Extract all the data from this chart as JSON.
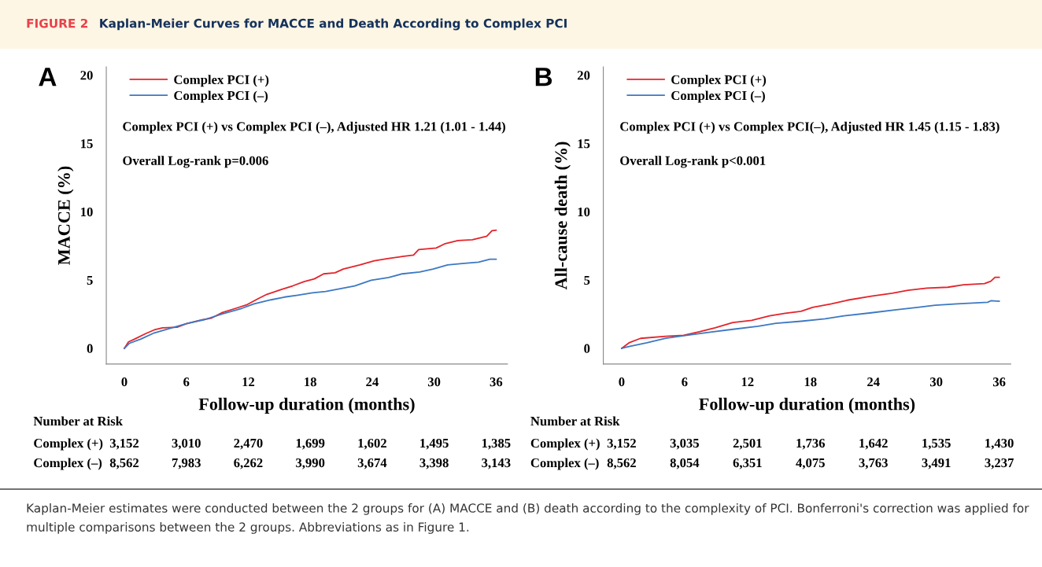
{
  "chart_data": [
    {
      "type": "line",
      "title": "A",
      "xlabel": "Follow-up duration (months)",
      "ylabel": "MACCE (%)",
      "xlim": [
        -1.75,
        37.1
      ],
      "ylim": [
        -1.15,
        20.6
      ],
      "xticks": [
        0,
        6,
        12,
        18,
        24,
        30,
        36
      ],
      "yticks": [
        0,
        5,
        10,
        15,
        20
      ],
      "grid": false,
      "legend": "top left",
      "series": [
        {
          "name": "Complex PCI (+)",
          "color": "#e3242b",
          "x": [
            0,
            0.4,
            1.0,
            2.1,
            2.9,
            3.7,
            5.1,
            6.0,
            7.3,
            8.4,
            9.5,
            10.8,
            11.9,
            13.0,
            13.8,
            15.2,
            16.3,
            17.4,
            18.4,
            19.3,
            20.4,
            21.2,
            22.8,
            24.2,
            25.6,
            26.9,
            28.0,
            28.5,
            30.2,
            31.0,
            32.3,
            33.7,
            35.1,
            35.6,
            36.0
          ],
          "values": [
            0,
            0.47,
            0.68,
            1.09,
            1.35,
            1.5,
            1.54,
            1.8,
            2.05,
            2.2,
            2.62,
            2.93,
            3.2,
            3.65,
            3.95,
            4.3,
            4.57,
            4.88,
            5.08,
            5.45,
            5.53,
            5.8,
            6.1,
            6.41,
            6.58,
            6.72,
            6.82,
            7.23,
            7.34,
            7.64,
            7.89,
            7.95,
            8.2,
            8.61,
            8.65
          ]
        },
        {
          "name": "Complex PCI (–)",
          "color": "#3c78c3",
          "x": [
            0,
            0.5,
            1.6,
            2.9,
            4.6,
            6.0,
            7.8,
            9.5,
            11.4,
            12.5,
            14.2,
            15.5,
            16.8,
            18.2,
            19.5,
            20.9,
            22.3,
            23.9,
            25.6,
            26.9,
            28.6,
            29.9,
            31.3,
            32.7,
            34.3,
            35.4,
            36.0
          ],
          "values": [
            0,
            0.37,
            0.68,
            1.13,
            1.5,
            1.8,
            2.11,
            2.52,
            2.93,
            3.24,
            3.55,
            3.75,
            3.89,
            4.06,
            4.16,
            4.36,
            4.57,
            4.98,
            5.18,
            5.45,
            5.59,
            5.8,
            6.1,
            6.21,
            6.31,
            6.52,
            6.52
          ]
        }
      ],
      "annotations": [
        "Complex PCI (+) vs Complex PCI (–), Adjusted HR 1.21 (1.01 - 1.44)",
        "Overall Log-rank p=0.006",
        "Number at Risk",
        "Complex (+)",
        "3,152",
        "3,010",
        "2,470",
        "1,699",
        "1,602",
        "1,495",
        "1,385",
        "Complex (–)",
        "8,562",
        "7,983",
        "6,262",
        "3,990",
        "3,674",
        "3,398",
        "3,143",
        "FIGURE 2",
        "Kaplan-Meier Curves for MACCE and Death According to Complex PCI",
        "Kaplan-Meier estimates were conducted between the 2 groups for (A) MACCE and (B) death according to the complexity of PCI. Bonferroni's correction was applied for multiple comparisons between the 2 groups. Abbreviations as in Figure 1."
      ]
    },
    {
      "type": "line",
      "title": "B",
      "xlabel": "Follow-up duration (months)",
      "ylabel": "All-cause death (%)",
      "xlim": [
        -1.75,
        37.1
      ],
      "ylim": [
        -1.15,
        20.6
      ],
      "xticks": [
        0,
        6,
        12,
        18,
        24,
        30,
        36
      ],
      "yticks": [
        0,
        5,
        10,
        15,
        20
      ],
      "grid": false,
      "legend": "top left",
      "series": [
        {
          "name": "Complex PCI (+)",
          "color": "#e3242b",
          "x": [
            0,
            0.7,
            1.8,
            4.2,
            5.9,
            7.4,
            8.9,
            10.6,
            12.4,
            14.1,
            15.6,
            17.1,
            18.2,
            20.0,
            21.5,
            23.8,
            25.8,
            27.3,
            29.1,
            31.1,
            32.6,
            34.6,
            35.2,
            35.6,
            36.0
          ],
          "values": [
            0,
            0.4,
            0.73,
            0.88,
            0.95,
            1.21,
            1.5,
            1.89,
            2.05,
            2.38,
            2.56,
            2.71,
            3.0,
            3.26,
            3.52,
            3.81,
            4.03,
            4.25,
            4.41,
            4.47,
            4.65,
            4.74,
            4.91,
            5.2,
            5.2
          ]
        },
        {
          "name": "Complex PCI (–)",
          "color": "#3c78c3",
          "x": [
            0,
            0.7,
            2.4,
            4.2,
            6.2,
            8.3,
            10.6,
            13.0,
            14.7,
            17.1,
            19.4,
            21.2,
            23.8,
            26.2,
            28.2,
            29.9,
            32.0,
            34.9,
            35.2,
            36.0
          ],
          "values": [
            0,
            0.13,
            0.4,
            0.73,
            0.95,
            1.17,
            1.39,
            1.61,
            1.83,
            1.98,
            2.16,
            2.38,
            2.6,
            2.82,
            3.0,
            3.15,
            3.26,
            3.37,
            3.48,
            3.44
          ]
        }
      ],
      "annotations": [
        "Complex PCI (+) vs Complex PCI(–), Adjusted HR 1.45 (1.15 - 1.83)",
        "Overall Log-rank p<0.001",
        "Number at Risk",
        "Complex (+)",
        "3,152",
        "3,035",
        "2,501",
        "1,736",
        "1,642",
        "1,535",
        "1,430",
        "Complex (–)",
        "8,562",
        "8,054",
        "6,351",
        "4,075",
        "3,763",
        "3,491",
        "3,237"
      ]
    }
  ]
}
